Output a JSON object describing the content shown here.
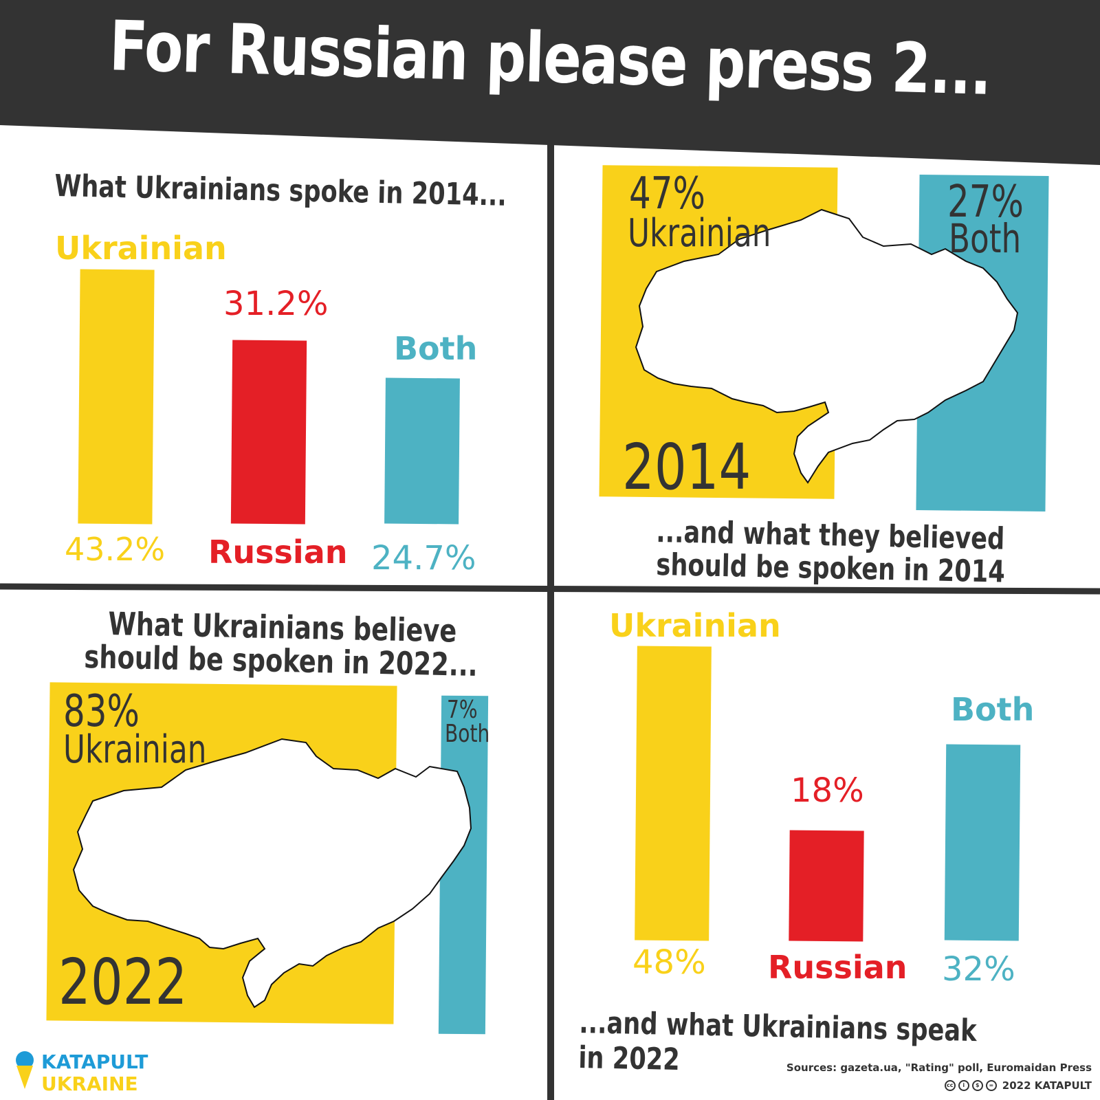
{
  "title": "For Russian please press 2...",
  "colors": {
    "ukrainian": "#f9d11a",
    "russian": "#e41f26",
    "both": "#4db2c3",
    "dark": "#333333"
  },
  "panel1": {
    "heading": "What Ukrainians spoke in 2014...",
    "ukrainian_label": "Ukrainian",
    "ukrainian_value": "43.2%",
    "russian_label": "Russian",
    "russian_value": "31.2%",
    "both_label": "Both",
    "both_value": "24.7%"
  },
  "panel2": {
    "ukrainian_pct": "47%",
    "ukrainian_label": "Ukrainian",
    "both_pct": "27%",
    "both_label": "Both",
    "year": "2014",
    "caption_line1": "...and what they believed",
    "caption_line2": "should be spoken in 2014"
  },
  "panel3": {
    "heading_line1": "What Ukrainians believe",
    "heading_line2": "should be spoken in 2022...",
    "ukrainian_pct": "83%",
    "ukrainian_label": "Ukrainian",
    "both_pct": "7%",
    "both_label": "Both",
    "year": "2022"
  },
  "panel4": {
    "ukrainian_label": "Ukrainian",
    "ukrainian_value": "48%",
    "russian_label": "Russian",
    "russian_value": "18%",
    "both_label": "Both",
    "both_value": "32%",
    "caption": "...and what Ukrainians speak in 2022"
  },
  "footer": {
    "logo_line1": "KATAPULT",
    "logo_line2": "UKRAINE",
    "sources": "Sources: gazeta.ua, \"Rating\" poll, Euromaidan Press",
    "copyright": "2022 KATAPULT"
  },
  "chart_data": [
    {
      "type": "bar",
      "categories": [
        "Ukrainian",
        "Russian",
        "Both"
      ],
      "values": [
        43.2,
        31.2,
        24.7
      ],
      "title": "What Ukrainians spoke in 2014..."
    },
    {
      "type": "bar",
      "categories": [
        "Ukrainian",
        "Both"
      ],
      "values": [
        47,
        27
      ],
      "title": "...and what they believed should be spoken in 2014"
    },
    {
      "type": "bar",
      "categories": [
        "Ukrainian",
        "Both"
      ],
      "values": [
        83,
        7
      ],
      "title": "What Ukrainians believe should be spoken in 2022..."
    },
    {
      "type": "bar",
      "categories": [
        "Ukrainian",
        "Russian",
        "Both"
      ],
      "values": [
        48,
        18,
        32
      ],
      "title": "...and what Ukrainians speak in 2022"
    }
  ]
}
